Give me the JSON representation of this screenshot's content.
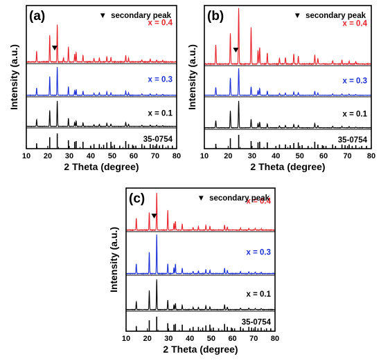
{
  "chart_data": [
    {
      "type": "line",
      "panel_label": "(a)",
      "xlabel": "2 Theta (degree)",
      "ylabel": "Intensity (a.u.)",
      "xlim": [
        10,
        80
      ],
      "x_ticks": [
        10,
        20,
        30,
        40,
        50,
        60,
        70,
        80
      ],
      "legend": {
        "marker": "▼",
        "text": "secondary peak",
        "position": "top-right"
      },
      "secondary_peak_marker": {
        "series": "x = 0.4",
        "x": 23.2
      },
      "series": [
        {
          "name": "x = 0.4",
          "color": "#e8222a",
          "peaks": [
            [
              14.8,
              0.2
            ],
            [
              20.9,
              0.5
            ],
            [
              24.4,
              0.7
            ],
            [
              27.3,
              0.08
            ],
            [
              29.6,
              0.28
            ],
            [
              32.5,
              0.15
            ],
            [
              33.2,
              0.18
            ],
            [
              36.4,
              0.12
            ],
            [
              41.5,
              0.07
            ],
            [
              44.0,
              0.07
            ],
            [
              47.5,
              0.1
            ],
            [
              49.4,
              0.08
            ],
            [
              56.3,
              0.12
            ],
            [
              57.6,
              0.07
            ],
            [
              63.8,
              0.04
            ],
            [
              67.7,
              0.05
            ],
            [
              70.7,
              0.04
            ],
            [
              73.5,
              0.03
            ]
          ]
        },
        {
          "name": "x = 0.3",
          "color": "#1a2fd6",
          "peaks": [
            [
              14.8,
              0.25
            ],
            [
              20.9,
              0.65
            ],
            [
              24.4,
              0.98
            ],
            [
              29.6,
              0.3
            ],
            [
              32.5,
              0.17
            ],
            [
              33.2,
              0.2
            ],
            [
              36.4,
              0.14
            ],
            [
              41.5,
              0.07
            ],
            [
              44.0,
              0.09
            ],
            [
              47.5,
              0.12
            ],
            [
              49.4,
              0.09
            ],
            [
              56.3,
              0.15
            ],
            [
              57.6,
              0.08
            ],
            [
              63.8,
              0.05
            ],
            [
              67.7,
              0.05
            ],
            [
              70.7,
              0.04
            ],
            [
              73.5,
              0.03
            ]
          ]
        },
        {
          "name": "x = 0.1",
          "color": "#000000",
          "peaks": [
            [
              14.8,
              0.25
            ],
            [
              20.9,
              0.6
            ],
            [
              24.4,
              0.95
            ],
            [
              29.6,
              0.3
            ],
            [
              32.5,
              0.15
            ],
            [
              33.2,
              0.2
            ],
            [
              36.4,
              0.14
            ],
            [
              41.5,
              0.07
            ],
            [
              44.0,
              0.08
            ],
            [
              47.5,
              0.12
            ],
            [
              49.4,
              0.09
            ],
            [
              56.3,
              0.15
            ],
            [
              57.6,
              0.08
            ],
            [
              63.8,
              0.05
            ],
            [
              67.7,
              0.05
            ],
            [
              70.7,
              0.04
            ],
            [
              73.5,
              0.03
            ]
          ]
        },
        {
          "name": "35-0754",
          "color": "#000000",
          "reference": true,
          "peaks": [
            [
              14.8,
              0.35
            ],
            [
              20.9,
              0.75
            ],
            [
              24.4,
              1.0
            ],
            [
              29.6,
              0.55
            ],
            [
              32.5,
              0.45
            ],
            [
              33.2,
              0.5
            ],
            [
              36.4,
              0.45
            ],
            [
              40.0,
              0.2
            ],
            [
              41.5,
              0.3
            ],
            [
              44.0,
              0.3
            ],
            [
              46.0,
              0.25
            ],
            [
              47.5,
              0.4
            ],
            [
              49.4,
              0.45
            ],
            [
              51.0,
              0.25
            ],
            [
              53.5,
              0.2
            ],
            [
              56.3,
              0.5
            ],
            [
              57.6,
              0.3
            ],
            [
              59.5,
              0.25
            ],
            [
              61.0,
              0.2
            ],
            [
              63.8,
              0.3
            ],
            [
              65.0,
              0.2
            ],
            [
              67.7,
              0.3
            ],
            [
              69.0,
              0.25
            ],
            [
              70.7,
              0.3
            ],
            [
              72.0,
              0.2
            ],
            [
              73.5,
              0.25
            ],
            [
              76.0,
              0.2
            ],
            [
              78.0,
              0.2
            ]
          ]
        }
      ]
    },
    {
      "type": "line",
      "panel_label": "(b)",
      "xlabel": "2 Theta (degree)",
      "ylabel": "Intensity (a.u.)",
      "xlim": [
        10,
        80
      ],
      "x_ticks": [
        10,
        20,
        30,
        40,
        50,
        60,
        70,
        80
      ],
      "legend": {
        "marker": "▼",
        "text": "secondary peak",
        "position": "top-right"
      },
      "secondary_peak_marker": {
        "series": "x = 0.4",
        "x": 23.2
      },
      "series": [
        {
          "name": "x = 0.4",
          "color": "#e8222a",
          "peaks": [
            [
              14.8,
              0.35
            ],
            [
              20.9,
              0.55
            ],
            [
              24.4,
              1.0
            ],
            [
              29.6,
              0.65
            ],
            [
              32.5,
              0.25
            ],
            [
              33.2,
              0.3
            ],
            [
              36.4,
              0.2
            ],
            [
              41.5,
              0.1
            ],
            [
              44.0,
              0.12
            ],
            [
              47.5,
              0.18
            ],
            [
              49.4,
              0.14
            ],
            [
              56.3,
              0.16
            ],
            [
              57.6,
              0.1
            ],
            [
              63.8,
              0.06
            ],
            [
              67.7,
              0.07
            ],
            [
              70.7,
              0.05
            ],
            [
              73.5,
              0.04
            ]
          ]
        },
        {
          "name": "x = 0.3",
          "color": "#1a2fd6",
          "peaks": [
            [
              14.8,
              0.3
            ],
            [
              20.9,
              0.65
            ],
            [
              24.4,
              1.0
            ],
            [
              29.6,
              0.32
            ],
            [
              32.5,
              0.18
            ],
            [
              33.2,
              0.26
            ],
            [
              36.4,
              0.16
            ],
            [
              41.5,
              0.07
            ],
            [
              44.0,
              0.08
            ],
            [
              47.5,
              0.12
            ],
            [
              49.4,
              0.1
            ],
            [
              56.3,
              0.15
            ],
            [
              57.6,
              0.08
            ],
            [
              63.8,
              0.05
            ],
            [
              67.7,
              0.05
            ],
            [
              70.7,
              0.04
            ],
            [
              73.5,
              0.03
            ]
          ]
        },
        {
          "name": "x = 0.1",
          "color": "#000000",
          "peaks": [
            [
              14.8,
              0.25
            ],
            [
              20.9,
              0.6
            ],
            [
              24.4,
              0.95
            ],
            [
              29.6,
              0.3
            ],
            [
              32.5,
              0.15
            ],
            [
              33.2,
              0.2
            ],
            [
              36.4,
              0.14
            ],
            [
              41.5,
              0.07
            ],
            [
              44.0,
              0.08
            ],
            [
              47.5,
              0.12
            ],
            [
              49.4,
              0.09
            ],
            [
              56.3,
              0.15
            ],
            [
              57.6,
              0.08
            ],
            [
              63.8,
              0.05
            ],
            [
              67.7,
              0.05
            ],
            [
              70.7,
              0.04
            ],
            [
              73.5,
              0.03
            ]
          ]
        },
        {
          "name": "35-0754",
          "color": "#000000",
          "reference": true,
          "peaks": [
            [
              14.8,
              0.35
            ],
            [
              20.9,
              0.75
            ],
            [
              24.4,
              1.0
            ],
            [
              29.6,
              0.55
            ],
            [
              32.5,
              0.45
            ],
            [
              33.2,
              0.5
            ],
            [
              36.4,
              0.45
            ],
            [
              40.0,
              0.2
            ],
            [
              41.5,
              0.3
            ],
            [
              44.0,
              0.3
            ],
            [
              46.0,
              0.25
            ],
            [
              47.5,
              0.4
            ],
            [
              49.4,
              0.45
            ],
            [
              51.0,
              0.25
            ],
            [
              53.5,
              0.2
            ],
            [
              56.3,
              0.5
            ],
            [
              57.6,
              0.3
            ],
            [
              59.5,
              0.25
            ],
            [
              61.0,
              0.2
            ],
            [
              63.8,
              0.3
            ],
            [
              65.0,
              0.2
            ],
            [
              67.7,
              0.3
            ],
            [
              69.0,
              0.25
            ],
            [
              70.7,
              0.3
            ],
            [
              72.0,
              0.2
            ],
            [
              73.5,
              0.25
            ],
            [
              76.0,
              0.2
            ],
            [
              78.0,
              0.2
            ]
          ]
        }
      ]
    },
    {
      "type": "line",
      "panel_label": "(c)",
      "xlabel": "2 Theta (degree)",
      "ylabel": "Intensity (a.u.)",
      "xlim": [
        10,
        80
      ],
      "x_ticks": [
        10,
        20,
        30,
        40,
        50,
        60,
        70,
        80
      ],
      "legend": {
        "marker": "▼",
        "text": "secondary peak",
        "position": "top-right"
      },
      "secondary_peak_marker": {
        "series": "x = 0.4",
        "x": 23.2
      },
      "series": [
        {
          "name": "x = 0.4",
          "color": "#e8222a",
          "peaks": [
            [
              14.8,
              0.3
            ],
            [
              20.9,
              0.45
            ],
            [
              24.4,
              0.95
            ],
            [
              29.6,
              0.5
            ],
            [
              32.5,
              0.18
            ],
            [
              33.2,
              0.22
            ],
            [
              36.4,
              0.15
            ],
            [
              41.5,
              0.07
            ],
            [
              44.0,
              0.09
            ],
            [
              47.5,
              0.12
            ],
            [
              49.4,
              0.1
            ],
            [
              56.3,
              0.13
            ],
            [
              57.6,
              0.08
            ],
            [
              63.8,
              0.05
            ],
            [
              67.7,
              0.05
            ],
            [
              70.7,
              0.04
            ],
            [
              73.5,
              0.03
            ]
          ]
        },
        {
          "name": "x = 0.3",
          "color": "#1a2fd6",
          "peaks": [
            [
              14.8,
              0.25
            ],
            [
              20.9,
              0.55
            ],
            [
              24.4,
              1.0
            ],
            [
              29.6,
              0.25
            ],
            [
              32.5,
              0.15
            ],
            [
              33.2,
              0.25
            ],
            [
              36.4,
              0.14
            ],
            [
              41.5,
              0.06
            ],
            [
              44.0,
              0.07
            ],
            [
              47.5,
              0.11
            ],
            [
              49.4,
              0.09
            ],
            [
              56.3,
              0.14
            ],
            [
              57.6,
              0.08
            ],
            [
              63.8,
              0.05
            ],
            [
              67.7,
              0.05
            ],
            [
              70.7,
              0.04
            ],
            [
              73.5,
              0.03
            ]
          ]
        },
        {
          "name": "x = 0.1",
          "color": "#000000",
          "peaks": [
            [
              14.8,
              0.25
            ],
            [
              20.9,
              0.6
            ],
            [
              24.4,
              0.95
            ],
            [
              29.6,
              0.3
            ],
            [
              32.5,
              0.15
            ],
            [
              33.2,
              0.2
            ],
            [
              36.4,
              0.14
            ],
            [
              41.5,
              0.07
            ],
            [
              44.0,
              0.08
            ],
            [
              47.5,
              0.12
            ],
            [
              49.4,
              0.09
            ],
            [
              56.3,
              0.15
            ],
            [
              57.6,
              0.08
            ],
            [
              63.8,
              0.05
            ],
            [
              67.7,
              0.05
            ],
            [
              70.7,
              0.04
            ],
            [
              73.5,
              0.03
            ]
          ]
        },
        {
          "name": "35-0754",
          "color": "#000000",
          "reference": true,
          "peaks": [
            [
              14.8,
              0.35
            ],
            [
              20.9,
              0.75
            ],
            [
              24.4,
              1.0
            ],
            [
              29.6,
              0.55
            ],
            [
              32.5,
              0.45
            ],
            [
              33.2,
              0.5
            ],
            [
              36.4,
              0.45
            ],
            [
              40.0,
              0.2
            ],
            [
              41.5,
              0.3
            ],
            [
              44.0,
              0.3
            ],
            [
              46.0,
              0.25
            ],
            [
              47.5,
              0.4
            ],
            [
              49.4,
              0.45
            ],
            [
              51.0,
              0.25
            ],
            [
              53.5,
              0.2
            ],
            [
              56.3,
              0.5
            ],
            [
              57.6,
              0.3
            ],
            [
              59.5,
              0.25
            ],
            [
              61.0,
              0.2
            ],
            [
              63.8,
              0.3
            ],
            [
              65.0,
              0.2
            ],
            [
              67.7,
              0.3
            ],
            [
              69.0,
              0.25
            ],
            [
              70.7,
              0.3
            ],
            [
              72.0,
              0.2
            ],
            [
              73.5,
              0.25
            ],
            [
              76.0,
              0.2
            ],
            [
              78.0,
              0.2
            ]
          ]
        }
      ]
    }
  ]
}
